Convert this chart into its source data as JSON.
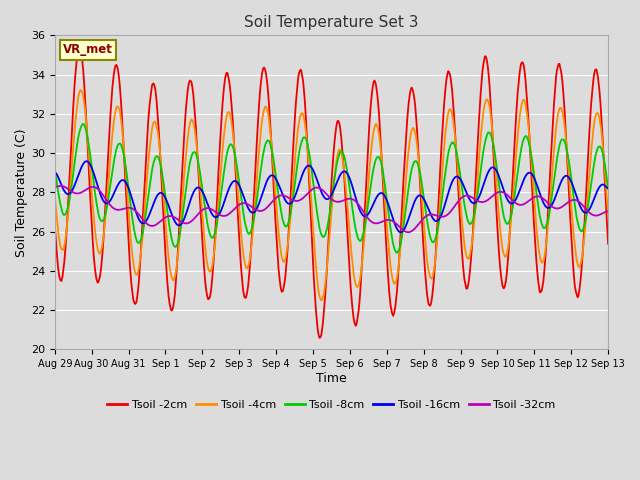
{
  "title": "Soil Temperature Set 3",
  "xlabel": "Time",
  "ylabel": "Soil Temperature (C)",
  "ylim": [
    20,
    36
  ],
  "plot_bg": "#dcdcdc",
  "fig_bg": "#dcdcdc",
  "grid_color": "#ffffff",
  "label_box_text": "VR_met",
  "series": [
    {
      "label": "Tsoil -2cm",
      "color": "#ee0000"
    },
    {
      "label": "Tsoil -4cm",
      "color": "#ff8c00"
    },
    {
      "label": "Tsoil -8cm",
      "color": "#00cc00"
    },
    {
      "label": "Tsoil -16cm",
      "color": "#0000ee"
    },
    {
      "label": "Tsoil -32cm",
      "color": "#bb00bb"
    }
  ],
  "x_tick_labels": [
    "Aug 29",
    "Aug 30",
    "Aug 31",
    "Sep 1",
    "Sep 2",
    "Sep 3",
    "Sep 4",
    "Sep 5",
    "Sep 6",
    "Sep 7",
    "Sep 8",
    "Sep 9",
    "Sep 10",
    "Sep 11",
    "Sep 12",
    "Sep 13"
  ],
  "num_days": 15,
  "points_per_day": 144
}
